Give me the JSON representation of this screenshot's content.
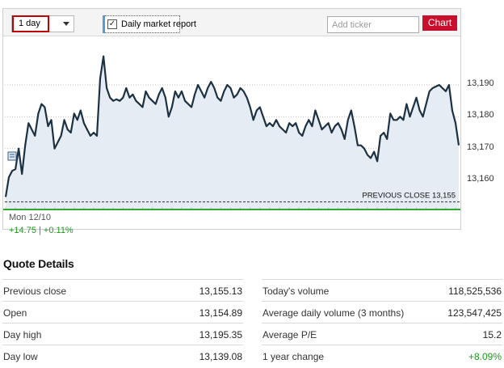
{
  "toolbar": {
    "range_value": "1 day",
    "report_label": "Daily market report",
    "report_checked": "✓",
    "ticker_placeholder": "Add ticker",
    "chart_button": "Chart"
  },
  "chart_data": {
    "type": "line",
    "y_ticks": [
      "13,190",
      "13,180",
      "13,170",
      "13,160"
    ],
    "y_tick_values": [
      13190,
      13180,
      13170,
      13160
    ],
    "ylim": [
      13153,
      13203
    ],
    "previous_close_label": "PREVIOUS CLOSE 13,155",
    "previous_close": 13155,
    "date_label": "Mon 12/10",
    "change_label": "+14.75 | +0.11%",
    "grid": true,
    "colors": {
      "line": "#1c3142",
      "fill": "#e6ecf3",
      "volume": "#2ea82e",
      "grid": "#c0c0c0"
    },
    "series": [
      {
        "values": [
          13154.8,
          13161,
          13163,
          13163.5,
          13170,
          13162,
          13171,
          13178,
          13176,
          13174,
          13181,
          13184,
          13183,
          13177,
          13179,
          13170,
          13172,
          13174,
          13179,
          13176,
          13175,
          13181,
          13179,
          13182,
          13178,
          13176,
          13174,
          13175,
          13174,
          13192,
          13199,
          13189,
          13186,
          13185,
          13185.5,
          13185,
          13186,
          13189,
          13186,
          13187,
          13185,
          13184,
          13183,
          13188,
          13186,
          13185,
          13184,
          13187,
          13189,
          13186,
          13180,
          13183,
          13188,
          13186,
          13188,
          13185,
          13184,
          13183,
          13187,
          13190,
          13188,
          13186,
          13189,
          13191,
          13189,
          13186,
          13185,
          13188,
          13190,
          13189,
          13186,
          13187,
          13189,
          13188,
          13186,
          13183,
          13179,
          13182,
          13183,
          13180,
          13177,
          13178,
          13177,
          13179,
          13177,
          13176,
          13175,
          13178,
          13177,
          13178,
          13175,
          13174,
          13177,
          13179,
          13177,
          13182,
          13179,
          13176,
          13177,
          13178,
          13175,
          13177,
          13178,
          13176,
          13173,
          13179,
          13182,
          13177,
          13171,
          13171,
          13170,
          13168,
          13167,
          13169,
          13166,
          13174,
          13175,
          13173,
          13181,
          13179,
          13179,
          13180,
          13179,
          13184,
          13180,
          13183,
          13186,
          13182,
          13180,
          13184,
          13188,
          13189,
          13189.5,
          13190,
          13189,
          13188,
          13190,
          13182,
          13178,
          13171
        ]
      }
    ]
  },
  "quote": {
    "title": "Quote Details",
    "left": [
      {
        "label": "Previous close",
        "value": "13,155.13"
      },
      {
        "label": "Open",
        "value": "13,154.89"
      },
      {
        "label": "Day high",
        "value": "13,195.35"
      },
      {
        "label": "Day low",
        "value": "13,139.08"
      }
    ],
    "right": [
      {
        "label": "Today's volume",
        "value": "118,525,536"
      },
      {
        "label": "Average daily volume (3 months)",
        "value": "123,547,425"
      },
      {
        "label": "Average P/E",
        "value": "15.2"
      },
      {
        "label": "1 year change",
        "value": "+8.09%"
      }
    ]
  }
}
